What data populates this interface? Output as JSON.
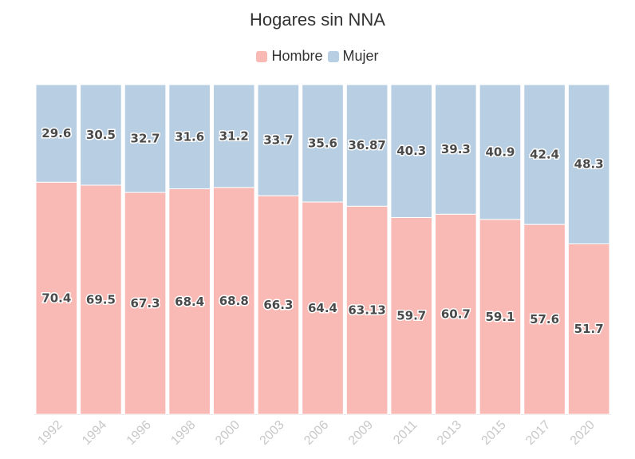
{
  "chart_data": {
    "type": "bar",
    "stacked": true,
    "title": "Hogares sin NNA",
    "xlabel": "",
    "ylabel": "",
    "ylim": [
      0,
      100
    ],
    "legend_position": "top-center",
    "grid": false,
    "categories": [
      "1992",
      "1994",
      "1996",
      "1998",
      "2000",
      "2003",
      "2006",
      "2009",
      "2011",
      "2013",
      "2015",
      "2017",
      "2020"
    ],
    "series": [
      {
        "name": "Hombre",
        "color": "#f9b9b5",
        "values": [
          70.4,
          69.5,
          67.3,
          68.4,
          68.8,
          66.3,
          64.4,
          63.13,
          59.7,
          60.7,
          59.1,
          57.6,
          51.7
        ],
        "labels": [
          "70.4",
          "69.5",
          "67.3",
          "68.4",
          "68.8",
          "66.3",
          "64.4",
          "63.13",
          "59.7",
          "60.7",
          "59.1",
          "57.6",
          "51.7"
        ]
      },
      {
        "name": "Mujer",
        "color": "#b8cfe3",
        "values": [
          29.6,
          30.5,
          32.7,
          31.6,
          31.2,
          33.7,
          35.6,
          36.87,
          40.3,
          39.3,
          40.9,
          42.4,
          48.3
        ],
        "labels": [
          "29.6",
          "30.5",
          "32.7",
          "31.6",
          "31.2",
          "33.7",
          "35.6",
          "36.87",
          "40.3",
          "39.3",
          "40.9",
          "42.4",
          "48.3"
        ]
      }
    ]
  }
}
